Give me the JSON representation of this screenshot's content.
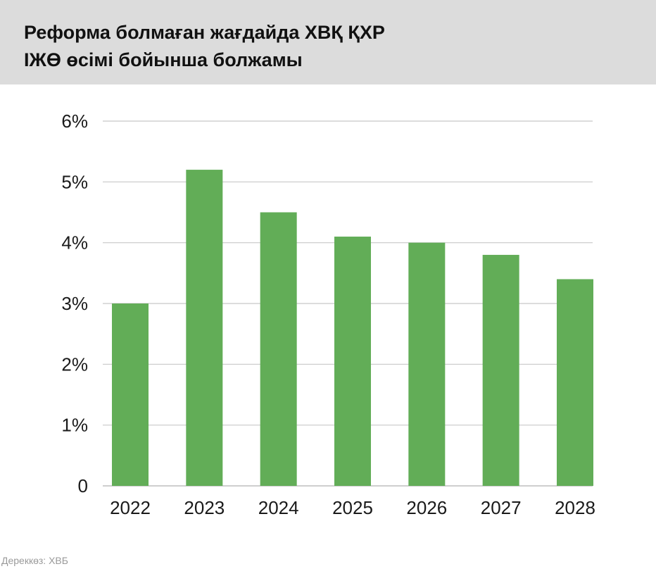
{
  "header": {
    "title_line1": "Реформа болмаған жағдайда ХВҚ ҚХР",
    "title_line2": "ІЖӨ өсімі бойынша болжамы"
  },
  "source": "Дереккөз: ХВБ",
  "chart_data": {
    "type": "bar",
    "categories": [
      "2022",
      "2023",
      "2024",
      "2025",
      "2026",
      "2027",
      "2028"
    ],
    "values": [
      3.0,
      5.2,
      4.5,
      4.1,
      4.0,
      3.8,
      3.4
    ],
    "ylim": [
      0,
      6
    ],
    "yticks": [
      0,
      1,
      2,
      3,
      4,
      5,
      6
    ],
    "ytick_labels": [
      "0",
      "1%",
      "2%",
      "3%",
      "4%",
      "5%",
      "6%"
    ],
    "xlabel": "",
    "ylabel": "",
    "grid": true,
    "bar_color": "#62ad57",
    "grid_color": "#c8c8c8"
  }
}
